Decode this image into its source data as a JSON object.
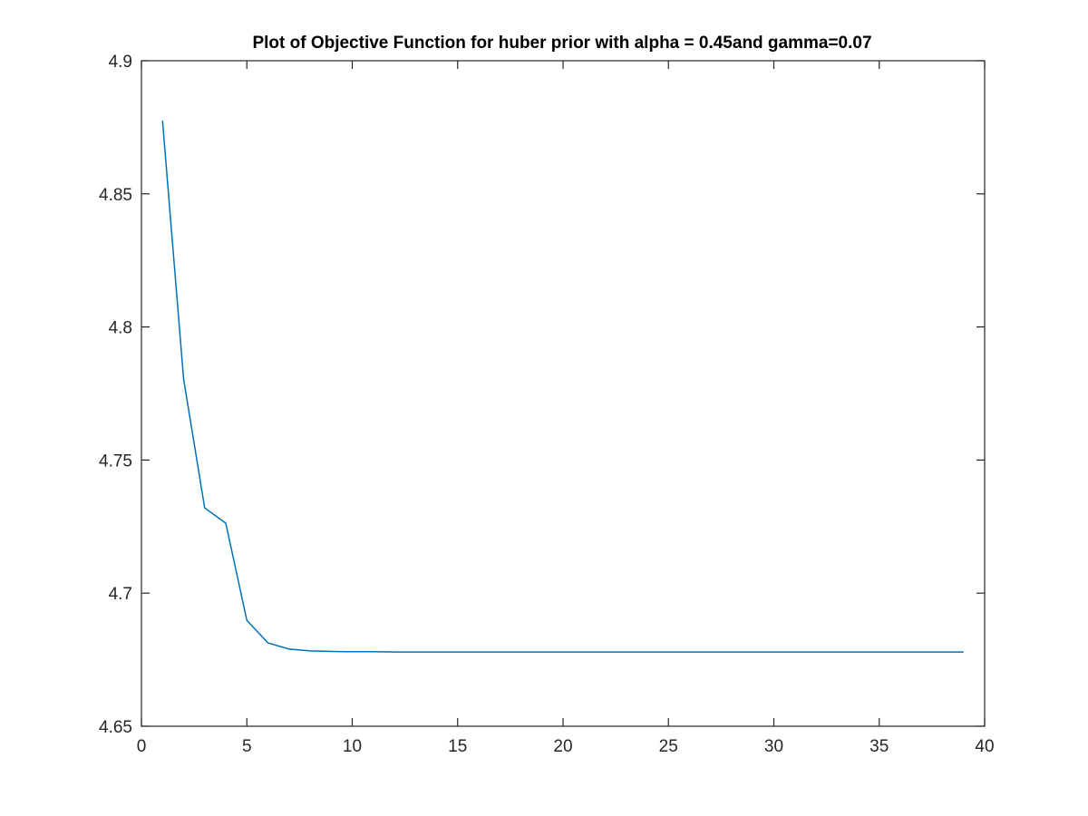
{
  "chart_data": {
    "type": "line",
    "title": "Plot of Objective Function for huber prior with alpha = 0.45and gamma=0.07",
    "xlabel": "",
    "ylabel": "",
    "xlim": [
      0,
      40
    ],
    "ylim": [
      4.65,
      4.9
    ],
    "xticks": [
      0,
      5,
      10,
      15,
      20,
      25,
      30,
      35,
      40
    ],
    "xtick_labels": [
      "0",
      "5",
      "10",
      "15",
      "20",
      "25",
      "30",
      "35",
      "40"
    ],
    "yticks": [
      4.65,
      4.7,
      4.75,
      4.8,
      4.85,
      4.9
    ],
    "ytick_labels": [
      "4.65",
      "4.7",
      "4.75",
      "4.8",
      "4.85",
      "4.9"
    ],
    "grid": false,
    "series": [
      {
        "color": "#0072BD",
        "x": [
          1,
          2,
          3,
          4,
          5,
          6,
          7,
          8,
          9,
          10,
          11,
          12,
          13,
          14,
          15,
          16,
          17,
          18,
          19,
          20,
          21,
          22,
          23,
          24,
          25,
          26,
          27,
          28,
          29,
          30,
          31,
          32,
          33,
          34,
          35,
          36,
          37,
          38,
          39
        ],
        "y": [
          4.8775,
          4.7805,
          4.732,
          4.7263,
          4.6898,
          4.6813,
          4.679,
          4.6783,
          4.6781,
          4.678,
          4.678,
          4.6779,
          4.6779,
          4.6779,
          4.6779,
          4.6779,
          4.6779,
          4.6779,
          4.6779,
          4.6779,
          4.6779,
          4.6779,
          4.6779,
          4.6779,
          4.6779,
          4.6779,
          4.6779,
          4.6779,
          4.6779,
          4.6779,
          4.6779,
          4.6779,
          4.6779,
          4.6779,
          4.6779,
          4.6779,
          4.6779,
          4.6779,
          4.6779
        ]
      }
    ]
  }
}
